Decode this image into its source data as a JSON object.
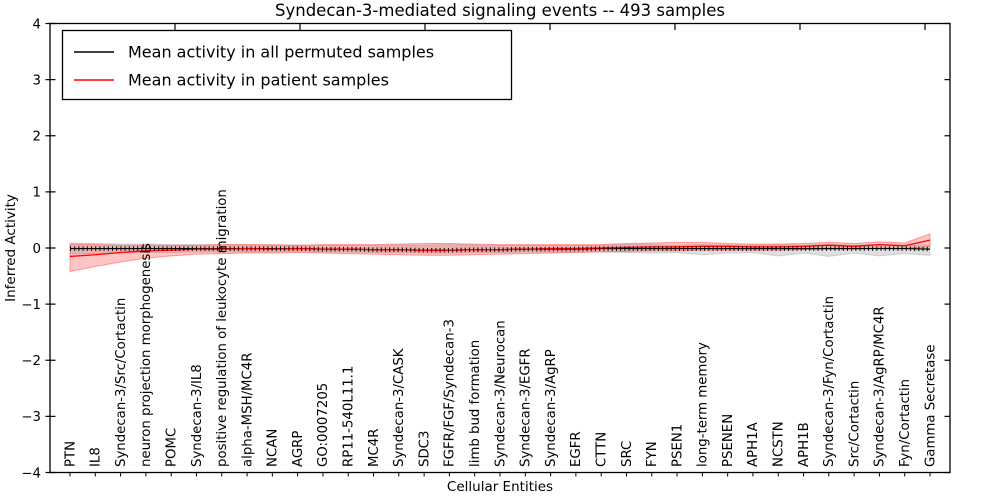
{
  "chart_data": {
    "type": "line",
    "title": "Syndecan-3-mediated signaling events -- 493 samples",
    "xlabel": "Cellular Entities",
    "ylabel": "Inferred Activity",
    "ylim": [
      -4,
      4
    ],
    "yticks": [
      -4,
      -3,
      -2,
      -1,
      0,
      1,
      2,
      3,
      4
    ],
    "ytick_labels": [
      "−4",
      "−3",
      "−2",
      "−1",
      "0",
      "1",
      "2",
      "3",
      "4"
    ],
    "grid": false,
    "legend_position": "upper left",
    "categories": [
      "PTN",
      "IL8",
      "Syndecan-3/Src/Cortactin",
      "neuron projection morphogenesis",
      "POMC",
      "Syndecan-3/IL8",
      "positive regulation of leukocyte migration",
      "alpha-MSH/MC4R",
      "NCAN",
      "AGRP",
      "GO:0007205",
      "RP11-540L11.1",
      "MC4R",
      "Syndecan-3/CASK",
      "SDC3",
      "FGFR/FGF/Syndecan-3",
      "limb bud formation",
      "Syndecan-3/Neurocan",
      "Syndecan-3/EGFR",
      "Syndecan-3/AgRP",
      "EGFR",
      "CTTN",
      "SRC",
      "FYN",
      "PSEN1",
      "long-term memory",
      "PSENEN",
      "APH1A",
      "NCSTN",
      "APH1B",
      "Syndecan-3/Fyn/Cortactin",
      "Src/Cortactin",
      "Syndecan-3/AgRP/MC4R",
      "Fyn/Cortactin",
      "Gamma Secretase"
    ],
    "series": [
      {
        "name": "Mean activity in all permuted samples",
        "color": "#000000",
        "band_color": "#bfbfbf",
        "values": [
          -0.01,
          -0.01,
          -0.01,
          -0.01,
          -0.01,
          -0.01,
          -0.01,
          -0.01,
          -0.01,
          -0.01,
          -0.02,
          -0.02,
          -0.03,
          -0.03,
          -0.04,
          -0.04,
          -0.03,
          -0.03,
          -0.02,
          -0.02,
          -0.02,
          -0.01,
          -0.01,
          -0.01,
          -0.01,
          -0.01,
          -0.01,
          -0.01,
          -0.01,
          -0.01,
          -0.01,
          -0.01,
          -0.01,
          -0.01,
          -0.02
        ],
        "band_upper": [
          0.09,
          0.08,
          0.07,
          0.07,
          0.06,
          0.06,
          0.06,
          0.06,
          0.05,
          0.05,
          0.05,
          0.05,
          0.05,
          0.05,
          0.05,
          0.06,
          0.05,
          0.05,
          0.05,
          0.05,
          0.05,
          0.05,
          0.06,
          0.06,
          0.05,
          0.06,
          0.05,
          0.05,
          0.06,
          0.05,
          0.06,
          0.05,
          0.06,
          0.05,
          0.05
        ],
        "band_lower": [
          -0.1,
          -0.1,
          -0.09,
          -0.08,
          -0.08,
          -0.07,
          -0.07,
          -0.07,
          -0.07,
          -0.06,
          -0.07,
          -0.07,
          -0.08,
          -0.08,
          -0.09,
          -0.09,
          -0.08,
          -0.08,
          -0.07,
          -0.07,
          -0.07,
          -0.07,
          -0.08,
          -0.09,
          -0.08,
          -0.12,
          -0.09,
          -0.08,
          -0.14,
          -0.09,
          -0.15,
          -0.09,
          -0.14,
          -0.1,
          -0.13
        ]
      },
      {
        "name": "Mean activity in patient samples",
        "color": "#ff0000",
        "band_color": "#ff5555",
        "values": [
          -0.15,
          -0.12,
          -0.08,
          -0.05,
          -0.04,
          -0.02,
          -0.02,
          -0.01,
          -0.02,
          -0.01,
          -0.02,
          -0.02,
          -0.03,
          -0.03,
          -0.04,
          -0.04,
          -0.03,
          -0.03,
          -0.02,
          -0.01,
          -0.01,
          0.0,
          0.01,
          0.02,
          0.02,
          0.03,
          0.03,
          0.02,
          0.02,
          0.03,
          0.05,
          0.03,
          0.06,
          0.04,
          0.14
        ],
        "band_upper": [
          0.07,
          0.06,
          0.05,
          0.05,
          0.05,
          0.05,
          0.06,
          0.06,
          0.06,
          0.05,
          0.06,
          0.06,
          0.06,
          0.07,
          0.08,
          0.08,
          0.07,
          0.06,
          0.06,
          0.06,
          0.06,
          0.06,
          0.08,
          0.09,
          0.1,
          0.1,
          0.08,
          0.07,
          0.07,
          0.08,
          0.1,
          0.08,
          0.11,
          0.09,
          0.25
        ],
        "band_lower": [
          -0.42,
          -0.33,
          -0.25,
          -0.18,
          -0.14,
          -0.11,
          -0.1,
          -0.09,
          -0.09,
          -0.08,
          -0.09,
          -0.1,
          -0.11,
          -0.12,
          -0.13,
          -0.13,
          -0.12,
          -0.11,
          -0.1,
          -0.09,
          -0.08,
          -0.07,
          -0.06,
          -0.05,
          -0.05,
          -0.04,
          -0.04,
          -0.04,
          -0.04,
          -0.03,
          -0.02,
          -0.02,
          -0.01,
          -0.01,
          0.02
        ]
      }
    ]
  }
}
